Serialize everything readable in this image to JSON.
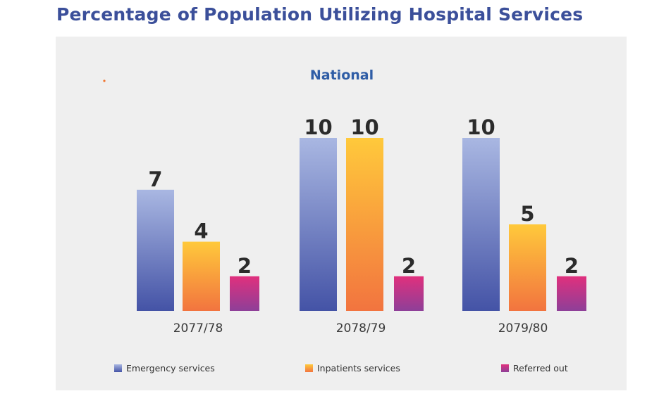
{
  "page_title": "Percentage of Population Utilizing Hospital Services",
  "colors": {
    "emergency_top": "#a9b7e2",
    "emergency_bottom": "#4453a6",
    "inpatients_top": "#ffc93b",
    "inpatients_bottom": "#f2743f",
    "referred_top": "#e0307d",
    "referred_bottom": "#8e3f98",
    "title": "#3b4f9a",
    "subtitle": "#2f5da6",
    "panel": "#efefef"
  },
  "chart_data": {
    "type": "bar",
    "title": "National",
    "categories": [
      "2077/78",
      "2078/79",
      "2079/80"
    ],
    "series": [
      {
        "name": "Emergency services",
        "values": [
          7,
          10,
          10
        ]
      },
      {
        "name": "Inpatients services",
        "values": [
          4,
          10,
          5
        ]
      },
      {
        "name": "Referred out",
        "values": [
          2,
          2,
          2
        ]
      }
    ],
    "xlabel": "",
    "ylabel": "",
    "ylim": [
      0,
      10
    ],
    "grid": false,
    "legend": "bottom"
  }
}
